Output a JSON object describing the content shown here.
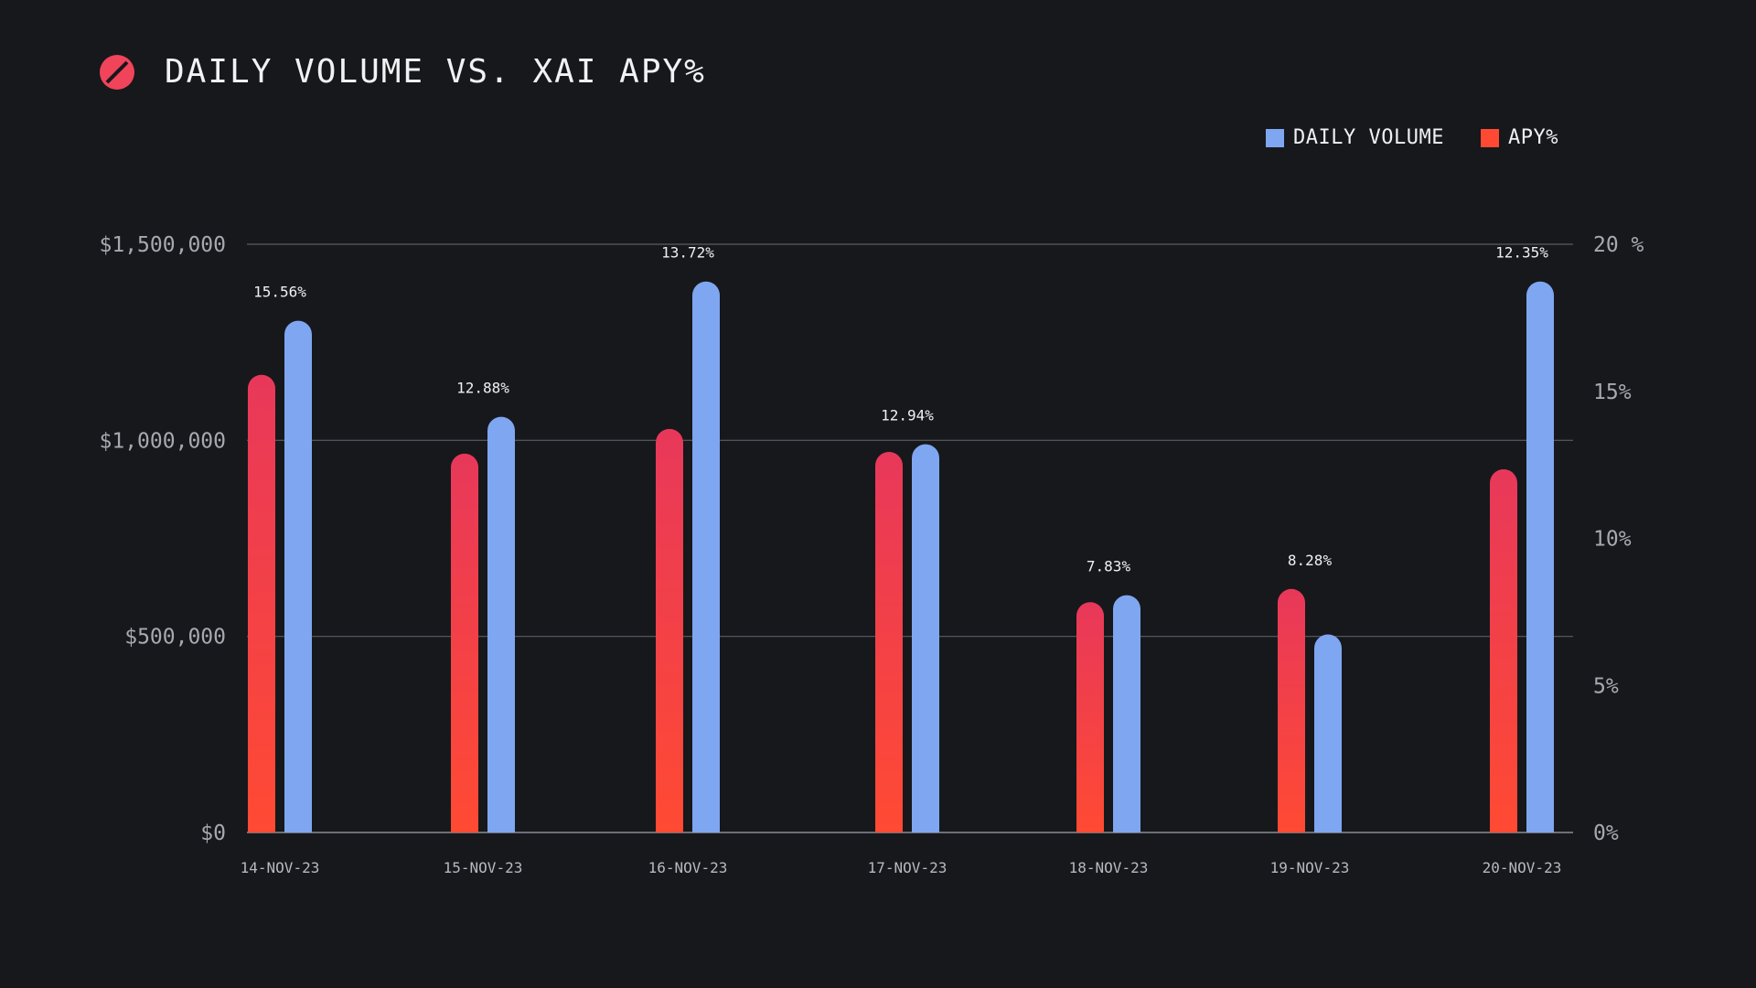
{
  "header": {
    "title": "DAILY VOLUME VS. XAI APY%"
  },
  "legend": {
    "items": [
      {
        "label": "DAILY VOLUME",
        "color": "#7fa6f0"
      },
      {
        "label": "APY%",
        "color": "#ff4a33"
      }
    ]
  },
  "colors": {
    "background": "#17181c",
    "volume": "#7fa6f0",
    "apy_top": "#e8385a",
    "apy_bottom": "#ff4a33",
    "gridline": "#5a5c63",
    "logo": "#f0445a"
  },
  "chart_data": {
    "type": "bar",
    "title": "DAILY VOLUME VS. XAI APY%",
    "categories": [
      "14-NOV-23",
      "15-NOV-23",
      "16-NOV-23",
      "17-NOV-23",
      "18-NOV-23",
      "19-NOV-23",
      "20-NOV-23"
    ],
    "series": [
      {
        "name": "APY%",
        "axis": "right",
        "values": [
          15.56,
          12.88,
          13.72,
          12.94,
          7.83,
          8.28,
          12.35
        ]
      },
      {
        "name": "DAILY VOLUME",
        "axis": "left",
        "values": [
          1305000,
          1060000,
          1405000,
          990000,
          605000,
          505000,
          1405000
        ]
      }
    ],
    "data_labels": [
      "15.56%",
      "12.88%",
      "13.72%",
      "12.94%",
      "7.83%",
      "8.28%",
      "12.35%"
    ],
    "y_left": {
      "ylim": [
        0,
        1500000
      ],
      "ticks": [
        0,
        500000,
        1000000,
        1500000
      ],
      "tick_labels": [
        "$0",
        "$500,000",
        "$1,000,000",
        "$1,500,000"
      ]
    },
    "y_right": {
      "ylim": [
        0,
        20
      ],
      "ticks": [
        0,
        5,
        10,
        15,
        20
      ],
      "tick_labels": [
        "0%",
        "5%",
        "10%",
        "15%",
        "20 %"
      ]
    },
    "grid": true,
    "legend_position": "top-right"
  }
}
